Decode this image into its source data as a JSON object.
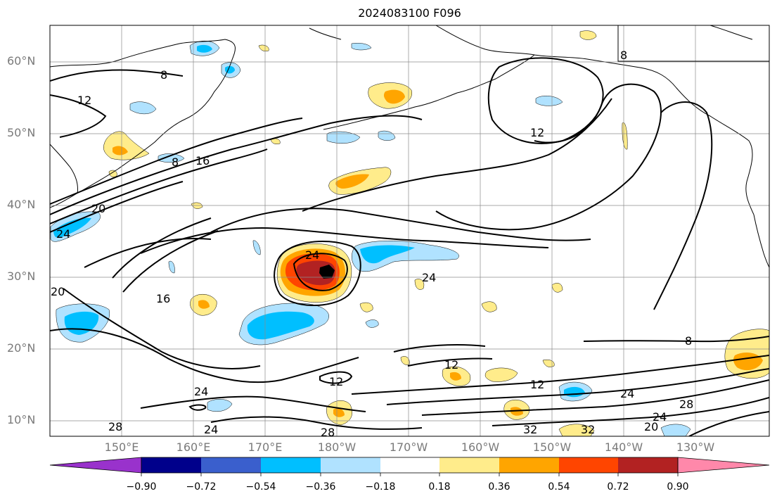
{
  "title": "2024083100 F096",
  "map": {
    "projection": "Plate Carree",
    "lon_range": [
      "140°E",
      "120°W"
    ],
    "lat_range": [
      "8°N",
      "65°N"
    ],
    "grid": true,
    "colors": {
      "background": "#ffffff",
      "coastline": "#000000",
      "gridline": "#8c8c8c",
      "contour_line": "#000000",
      "tick_label": "#7a7a7a"
    }
  },
  "lat_ticks": [
    "10°N",
    "20°N",
    "30°N",
    "40°N",
    "50°N",
    "60°N"
  ],
  "lon_ticks": [
    "150°E",
    "160°E",
    "170°E",
    "180°W",
    "170°W",
    "160°W",
    "150°W",
    "140°W",
    "130°W"
  ],
  "contour_labels": [
    "8",
    "12",
    "16",
    "20",
    "24",
    "28",
    "32"
  ],
  "colorbar": {
    "extend": "both",
    "levels": [
      "−0.90",
      "−0.72",
      "−0.54",
      "−0.36",
      "−0.18",
      "0.18",
      "0.36",
      "0.54",
      "0.72",
      "0.90"
    ],
    "colors": [
      "#9932cc",
      "#00008b",
      "#3a5fcd",
      "#00bfff",
      "#b0e2ff",
      "#ffffff",
      "#ffec8b",
      "#ffa500",
      "#ff4500",
      "#b22222",
      "#ff88aa"
    ]
  }
}
